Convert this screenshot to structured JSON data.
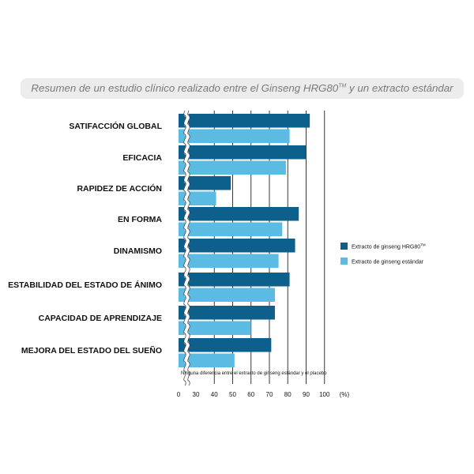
{
  "chart_data": {
    "type": "bar",
    "orientation": "horizontal",
    "title": "Resumen de un estudio clínico realizado entre el Ginseng HRG80",
    "title_sup": "TM",
    "title_end": " y un extracto estándar",
    "categories": [
      "SATIFACCIÓN GLOBAL",
      "EFICACIA",
      "RAPIDEZ DE ACCIÓN",
      "EN FORMA",
      "DINAMISMO",
      "ESTABILIDAD DEL ESTADO DE ÁNIMO",
      "CAPACIDAD DE APRENDIZAJE",
      "MEJORA DEL ESTADO DEL SUEÑO"
    ],
    "series": [
      {
        "name": "Extracto de ginseng HRG80",
        "name_sup": "TM",
        "color": "#0d5f8c",
        "values": [
          92,
          90,
          49,
          86,
          84,
          81,
          73,
          71
        ]
      },
      {
        "name": "Extracto de ginseng estándar",
        "color": "#5bbbe3",
        "values": [
          81,
          79,
          41,
          77,
          75,
          73,
          60,
          51
        ]
      }
    ],
    "x_ticks": [
      0,
      30,
      40,
      50,
      60,
      70,
      80,
      90,
      100
    ],
    "x_unit": "(%)",
    "axis_break": true,
    "xlim": [
      0,
      100
    ],
    "gridlines": [
      40,
      50,
      60,
      70,
      80,
      90
    ],
    "axis_line_at": 100,
    "note": "Ninguna diferencia entre el extracto de ginseng estándar y el placebo",
    "legend_position": "right"
  }
}
